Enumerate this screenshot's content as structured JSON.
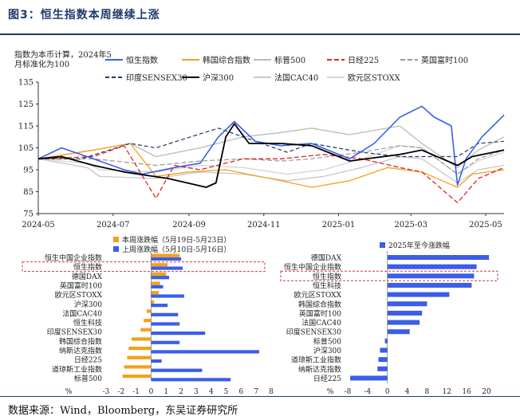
{
  "figure_title": "图3：恒生指数本周继续上涨",
  "source": "数据来源：Wind，Bloomberg，东吴证券研究所",
  "colors": {
    "title": "#1f3a6e",
    "blue": "#3a5ee8",
    "orange": "#f5a01c",
    "highlight": "#d23a3a"
  },
  "chart_data": [
    {
      "type": "line",
      "note_lines": [
        "指数为本币计算，2024年5",
        "月标准化为100"
      ],
      "x_ticks": [
        "2024-05",
        "2024-07",
        "2024-09",
        "2024-11",
        "2025-01",
        "2025-03",
        "2025-05"
      ],
      "y_ticks": [
        "75",
        "85",
        "95",
        "105",
        "115",
        "125",
        "135"
      ],
      "ylim": [
        75,
        135
      ],
      "xlim": [
        "2024-05-01",
        "2025-05-16"
      ],
      "grid": false,
      "legend": "top",
      "series": [
        {
          "name": "恒生指数",
          "color": "#3a5ee8",
          "dash": "solid",
          "width": 1.6,
          "x": [
            "2024-05-01",
            "2024-05-20",
            "2024-06-15",
            "2024-07-10",
            "2024-07-25",
            "2024-08-20",
            "2024-09-10",
            "2024-09-25",
            "2024-10-08",
            "2024-10-25",
            "2024-11-15",
            "2024-12-10",
            "2025-01-10",
            "2025-01-30",
            "2025-02-20",
            "2025-03-10",
            "2025-03-20",
            "2025-04-03",
            "2025-04-08",
            "2025-04-15",
            "2025-04-28",
            "2025-05-16"
          ],
          "y": [
            100,
            105,
            100,
            95,
            93,
            96,
            98,
            110,
            117,
            108,
            106,
            107,
            100,
            107,
            119,
            124,
            119,
            115,
            88,
            100,
            110,
            120
          ]
        },
        {
          "name": "韩国综合指数",
          "color": "#f5a01c",
          "dash": "solid",
          "width": 1.3,
          "x": [
            "2024-05-01",
            "2024-06-15",
            "2024-07-15",
            "2024-08-05",
            "2024-09-01",
            "2024-10-01",
            "2024-11-15",
            "2024-12-10",
            "2025-01-10",
            "2025-02-10",
            "2025-03-10",
            "2025-04-08",
            "2025-04-20",
            "2025-05-16"
          ],
          "y": [
            100,
            104,
            107,
            92,
            94,
            95,
            90,
            87,
            90,
            96,
            94,
            87,
            93,
            95
          ]
        },
        {
          "name": "标普500",
          "color": "#bbbbbb",
          "dash": "solid",
          "width": 1.3,
          "x": [
            "2024-05-01",
            "2024-06-15",
            "2024-07-15",
            "2024-08-05",
            "2024-09-10",
            "2024-10-15",
            "2024-11-15",
            "2024-12-10",
            "2025-01-10",
            "2025-02-20",
            "2025-03-10",
            "2025-04-08",
            "2025-04-25",
            "2025-05-16"
          ],
          "y": [
            100,
            104,
            107,
            101,
            105,
            110,
            112,
            114,
            111,
            115,
            107,
            96,
            104,
            110
          ]
        },
        {
          "name": "日经225",
          "color": "#e02424",
          "dash": "6,3",
          "width": 1.3,
          "x": [
            "2024-05-01",
            "2024-06-15",
            "2024-07-10",
            "2024-08-05",
            "2024-08-20",
            "2024-09-10",
            "2024-10-15",
            "2024-11-15",
            "2024-12-20",
            "2025-01-20",
            "2025-02-20",
            "2025-03-10",
            "2025-04-08",
            "2025-04-25",
            "2025-05-16"
          ],
          "y": [
            100,
            101,
            106,
            82,
            97,
            95,
            100,
            100,
            102,
            100,
            96,
            94,
            80,
            91,
            96
          ]
        },
        {
          "name": "英国富时100",
          "color": "#999999",
          "dash": "6,3",
          "width": 1.2,
          "x": [
            "2024-05-01",
            "2024-06-15",
            "2024-08-05",
            "2024-09-10",
            "2024-10-15",
            "2024-11-15",
            "2024-12-10",
            "2025-01-20",
            "2025-02-20",
            "2025-03-10",
            "2025-04-08",
            "2025-04-25",
            "2025-05-16"
          ],
          "y": [
            100,
            100,
            97,
            99,
            100,
            99,
            100,
            103,
            106,
            105,
            93,
            100,
            104
          ]
        },
        {
          "name": "印度SENSEX30",
          "color": "#1f3a6e",
          "dash": "5,3",
          "width": 1.2,
          "x": [
            "2024-05-01",
            "2024-06-05",
            "2024-07-15",
            "2024-08-05",
            "2024-09-25",
            "2024-10-25",
            "2024-11-20",
            "2024-12-10",
            "2025-01-20",
            "2025-02-20",
            "2025-03-10",
            "2025-04-08",
            "2025-04-25",
            "2025-05-16"
          ],
          "y": [
            100,
            100,
            107,
            105,
            114,
            108,
            103,
            107,
            103,
            101,
            101,
            101,
            107,
            108
          ]
        },
        {
          "name": "沪深300",
          "color": "#000000",
          "dash": "solid",
          "width": 1.8,
          "x": [
            "2024-05-01",
            "2024-05-20",
            "2024-06-15",
            "2024-07-10",
            "2024-08-15",
            "2024-09-15",
            "2024-09-23",
            "2024-10-01",
            "2024-10-08",
            "2024-10-20",
            "2024-11-15",
            "2024-12-10",
            "2025-01-10",
            "2025-02-20",
            "2025-03-10",
            "2025-04-08",
            "2025-04-20",
            "2025-05-16"
          ],
          "y": [
            100,
            101,
            97,
            94,
            91,
            87,
            89,
            110,
            116,
            107,
            107,
            106,
            99,
            102,
            104,
            97,
            101,
            104
          ]
        },
        {
          "name": "法国CAC40",
          "color": "#c8c8c8",
          "dash": "solid",
          "width": 1.3,
          "x": [
            "2024-05-01",
            "2024-06-10",
            "2024-06-20",
            "2024-08-05",
            "2024-09-10",
            "2024-10-15",
            "2024-11-20",
            "2024-12-20",
            "2025-01-20",
            "2025-02-20",
            "2025-03-10",
            "2025-04-08",
            "2025-04-25",
            "2025-05-16"
          ],
          "y": [
            100,
            96,
            92,
            91,
            94,
            93,
            90,
            92,
            96,
            101,
            100,
            89,
            95,
            97
          ]
        },
        {
          "name": "欧元区STOXX",
          "color": "#d4d4d4",
          "dash": "solid",
          "width": 1.3,
          "x": [
            "2024-05-01",
            "2024-06-10",
            "2024-06-20",
            "2024-08-05",
            "2024-09-10",
            "2024-10-15",
            "2024-11-20",
            "2024-12-20",
            "2025-01-20",
            "2025-02-20",
            "2025-03-10",
            "2025-04-08",
            "2025-04-25",
            "2025-05-16"
          ],
          "y": [
            100,
            98,
            95,
            94,
            97,
            96,
            93,
            95,
            100,
            106,
            105,
            93,
            99,
            103
          ]
        }
      ]
    },
    {
      "type": "bar",
      "orientation": "horizontal",
      "legend": "top",
      "series": [
        {
          "name": "本周涨跌幅（5月19日-5月23日）",
          "color": "#f5a01c"
        },
        {
          "name": "上周涨跌幅（5月10日-5月16日）",
          "color": "#3a5ee8"
        }
      ],
      "categories": [
        "恒生中国企业指数",
        "恒生指数",
        "德国DAX",
        "英国富时100",
        "欧元区STOXX",
        "沪深300",
        "法国CAC40",
        "恒生科技",
        "印度SENSEX30",
        "韩国综合指数",
        "纳斯达克指数",
        "日经225",
        "道琼斯工业指数",
        "标普500"
      ],
      "this_week": [
        1.9,
        1.1,
        1.0,
        0.6,
        0.5,
        0.2,
        -0.3,
        -0.5,
        -0.7,
        -1.3,
        -1.5,
        -1.6,
        -1.8,
        -1.9
      ],
      "last_week": [
        2.0,
        2.1,
        1.2,
        0.8,
        2.2,
        1.1,
        1.8,
        1.9,
        3.6,
        1.9,
        7.2,
        0.7,
        3.4,
        5.3
      ],
      "highlight": "恒生指数",
      "x_ticks": [
        "-3",
        "-2",
        "-1",
        "0",
        "1",
        "2",
        "3",
        "4",
        "5",
        "6",
        "7",
        "8"
      ],
      "xlim": [
        -3,
        8
      ],
      "unit": "%"
    },
    {
      "type": "bar",
      "orientation": "horizontal",
      "legend": "top",
      "series": [
        {
          "name": "2025年至今涨跌幅",
          "color": "#3a5ee8"
        }
      ],
      "categories": [
        "德国DAX",
        "恒生中国企业指数",
        "恒生指数",
        "恒生科技",
        "欧元区STOXX",
        "韩国综合指数",
        "英国富时100",
        "法国CAC40",
        "印度SENSEX30",
        "标普500",
        "沪深300",
        "道琼斯工业指数",
        "纳斯达克指数",
        "日经225"
      ],
      "values": [
        20.5,
        18.0,
        17.5,
        17.0,
        12.5,
        8.0,
        7.0,
        6.5,
        4.5,
        -0.5,
        -1.5,
        -1.8,
        -2.0,
        -7.5
      ],
      "highlight": "恒生指数",
      "x_ticks": [
        "%",
        "-8",
        "-4",
        "0",
        "4",
        "8",
        "12",
        "16",
        "20"
      ],
      "xlim": [
        -8,
        22
      ],
      "unit": "%"
    }
  ]
}
